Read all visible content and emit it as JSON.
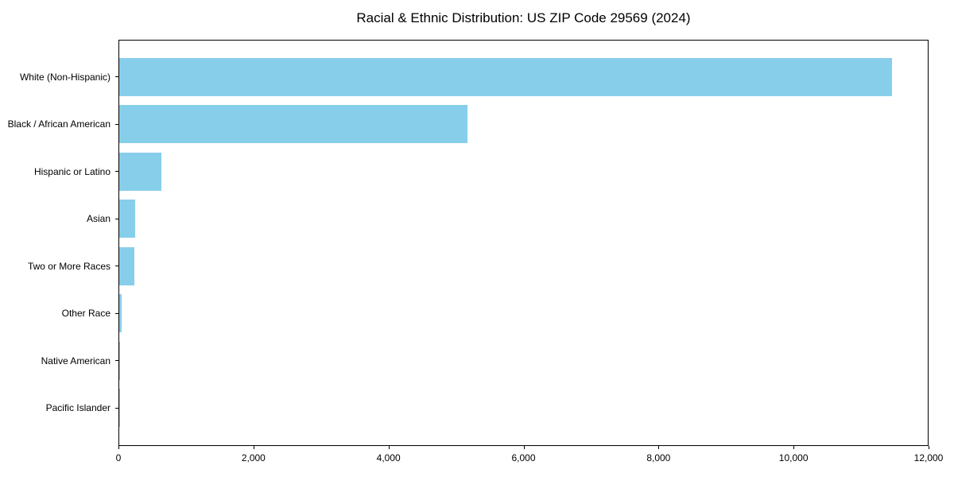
{
  "page": {
    "background": "#ffffff"
  },
  "colors": {
    "bar": "#87CEEB",
    "axis": "#000000",
    "text": "#000000"
  },
  "chart_data": {
    "type": "bar",
    "orientation": "horizontal",
    "title": "Racial & Ethnic Distribution: US ZIP Code 29569 (2024)",
    "xlabel": "",
    "ylabel": "",
    "categories": [
      "White (Non-Hispanic)",
      "Black / African American",
      "Hispanic or Latino",
      "Asian",
      "Two or More Races",
      "Other Race",
      "Native American",
      "Pacific Islander"
    ],
    "values": [
      11470,
      5170,
      620,
      240,
      230,
      35,
      10,
      3
    ],
    "xlim": [
      0,
      12000
    ],
    "xticks": [
      0,
      2000,
      4000,
      6000,
      8000,
      10000,
      12000
    ],
    "xtick_labels": [
      "0",
      "2,000",
      "4,000",
      "6,000",
      "8,000",
      "10,000",
      "12,000"
    ],
    "grid": false,
    "legend_position": "none",
    "bar_color": "#87CEEB"
  }
}
